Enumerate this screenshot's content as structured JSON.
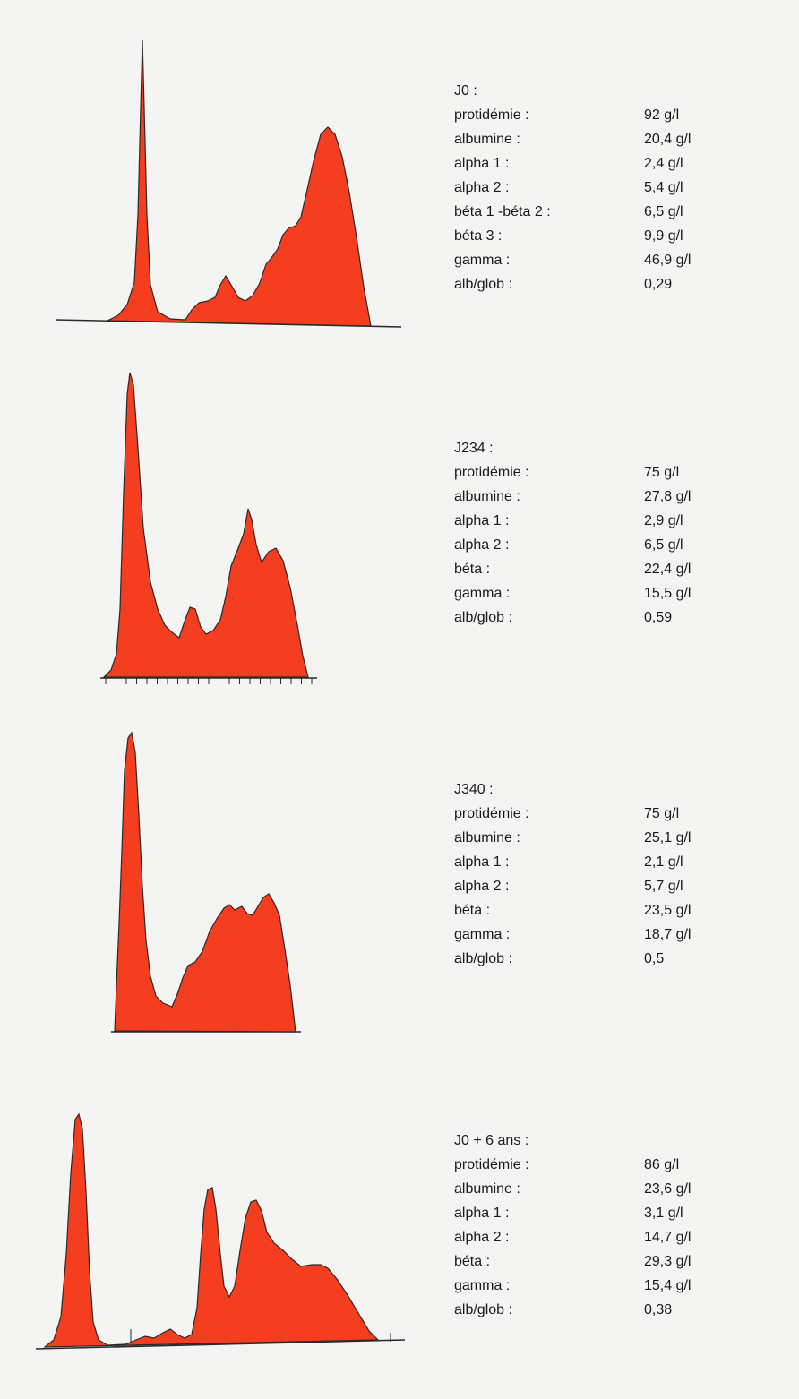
{
  "colors": {
    "fill": "#f43e1f",
    "outline": "#2a2a2a",
    "paper": "#f4f4f2"
  },
  "panels": [
    {
      "title": "J0 :",
      "rows": [
        {
          "label": "protidémie :",
          "value": "92 g/l"
        },
        {
          "label": "albumine :",
          "value": "20,4 g/l"
        },
        {
          "label": "alpha 1 :",
          "value": "2,4 g/l"
        },
        {
          "label": "alpha 2 :",
          "value": "5,4 g/l"
        },
        {
          "label": "béta 1 -béta 2 :",
          "value": "6,5 g/l"
        },
        {
          "label": "béta 3 :",
          "value": "9,9 g/l"
        },
        {
          "label": "gamma :",
          "value": "46,9 g/l"
        },
        {
          "label": "alb/glob :",
          "value": "0,29"
        }
      ]
    },
    {
      "title": "J234 :",
      "rows": [
        {
          "label": "protidémie :",
          "value": "75 g/l"
        },
        {
          "label": "albumine :",
          "value": "27,8 g/l"
        },
        {
          "label": "alpha 1 :",
          "value": "2,9 g/l"
        },
        {
          "label": "alpha 2 :",
          "value": "6,5 g/l"
        },
        {
          "label": "béta :",
          "value": "22,4 g/l"
        },
        {
          "label": "gamma :",
          "value": "15,5 g/l"
        },
        {
          "label": "alb/glob :",
          "value": "0,59"
        }
      ]
    },
    {
      "title": "J340 :",
      "rows": [
        {
          "label": "protidémie :",
          "value": "75 g/l"
        },
        {
          "label": "albumine :",
          "value": "25,1 g/l"
        },
        {
          "label": "alpha 1 :",
          "value": "2,1 g/l"
        },
        {
          "label": "alpha 2 :",
          "value": "5,7 g/l"
        },
        {
          "label": "béta :",
          "value": "23,5 g/l"
        },
        {
          "label": "gamma :",
          "value": "18,7 g/l"
        },
        {
          "label": "alb/glob :",
          "value": "0,5"
        }
      ]
    },
    {
      "title": "J0 + 6 ans :",
      "rows": [
        {
          "label": "protidémie :",
          "value": "86 g/l"
        },
        {
          "label": "albumine :",
          "value": "23,6 g/l"
        },
        {
          "label": "alpha 1 :",
          "value": "3,1 g/l"
        },
        {
          "label": "alpha 2 :",
          "value": "14,7 g/l"
        },
        {
          "label": "béta :",
          "value": "29,3 g/l"
        },
        {
          "label": "gamma :",
          "value": "15,4 g/l"
        },
        {
          "label": "alb/glob :",
          "value": "0,38"
        }
      ]
    }
  ],
  "chart_data": [
    {
      "type": "area",
      "title": "",
      "xlabel": "",
      "ylabel": ""
    },
    {
      "type": "area",
      "title": "",
      "xlabel": "",
      "ylabel": ""
    },
    {
      "type": "area",
      "title": "",
      "xlabel": "",
      "ylabel": ""
    },
    {
      "type": "area",
      "title": "",
      "xlabel": "",
      "ylabel": ""
    }
  ]
}
